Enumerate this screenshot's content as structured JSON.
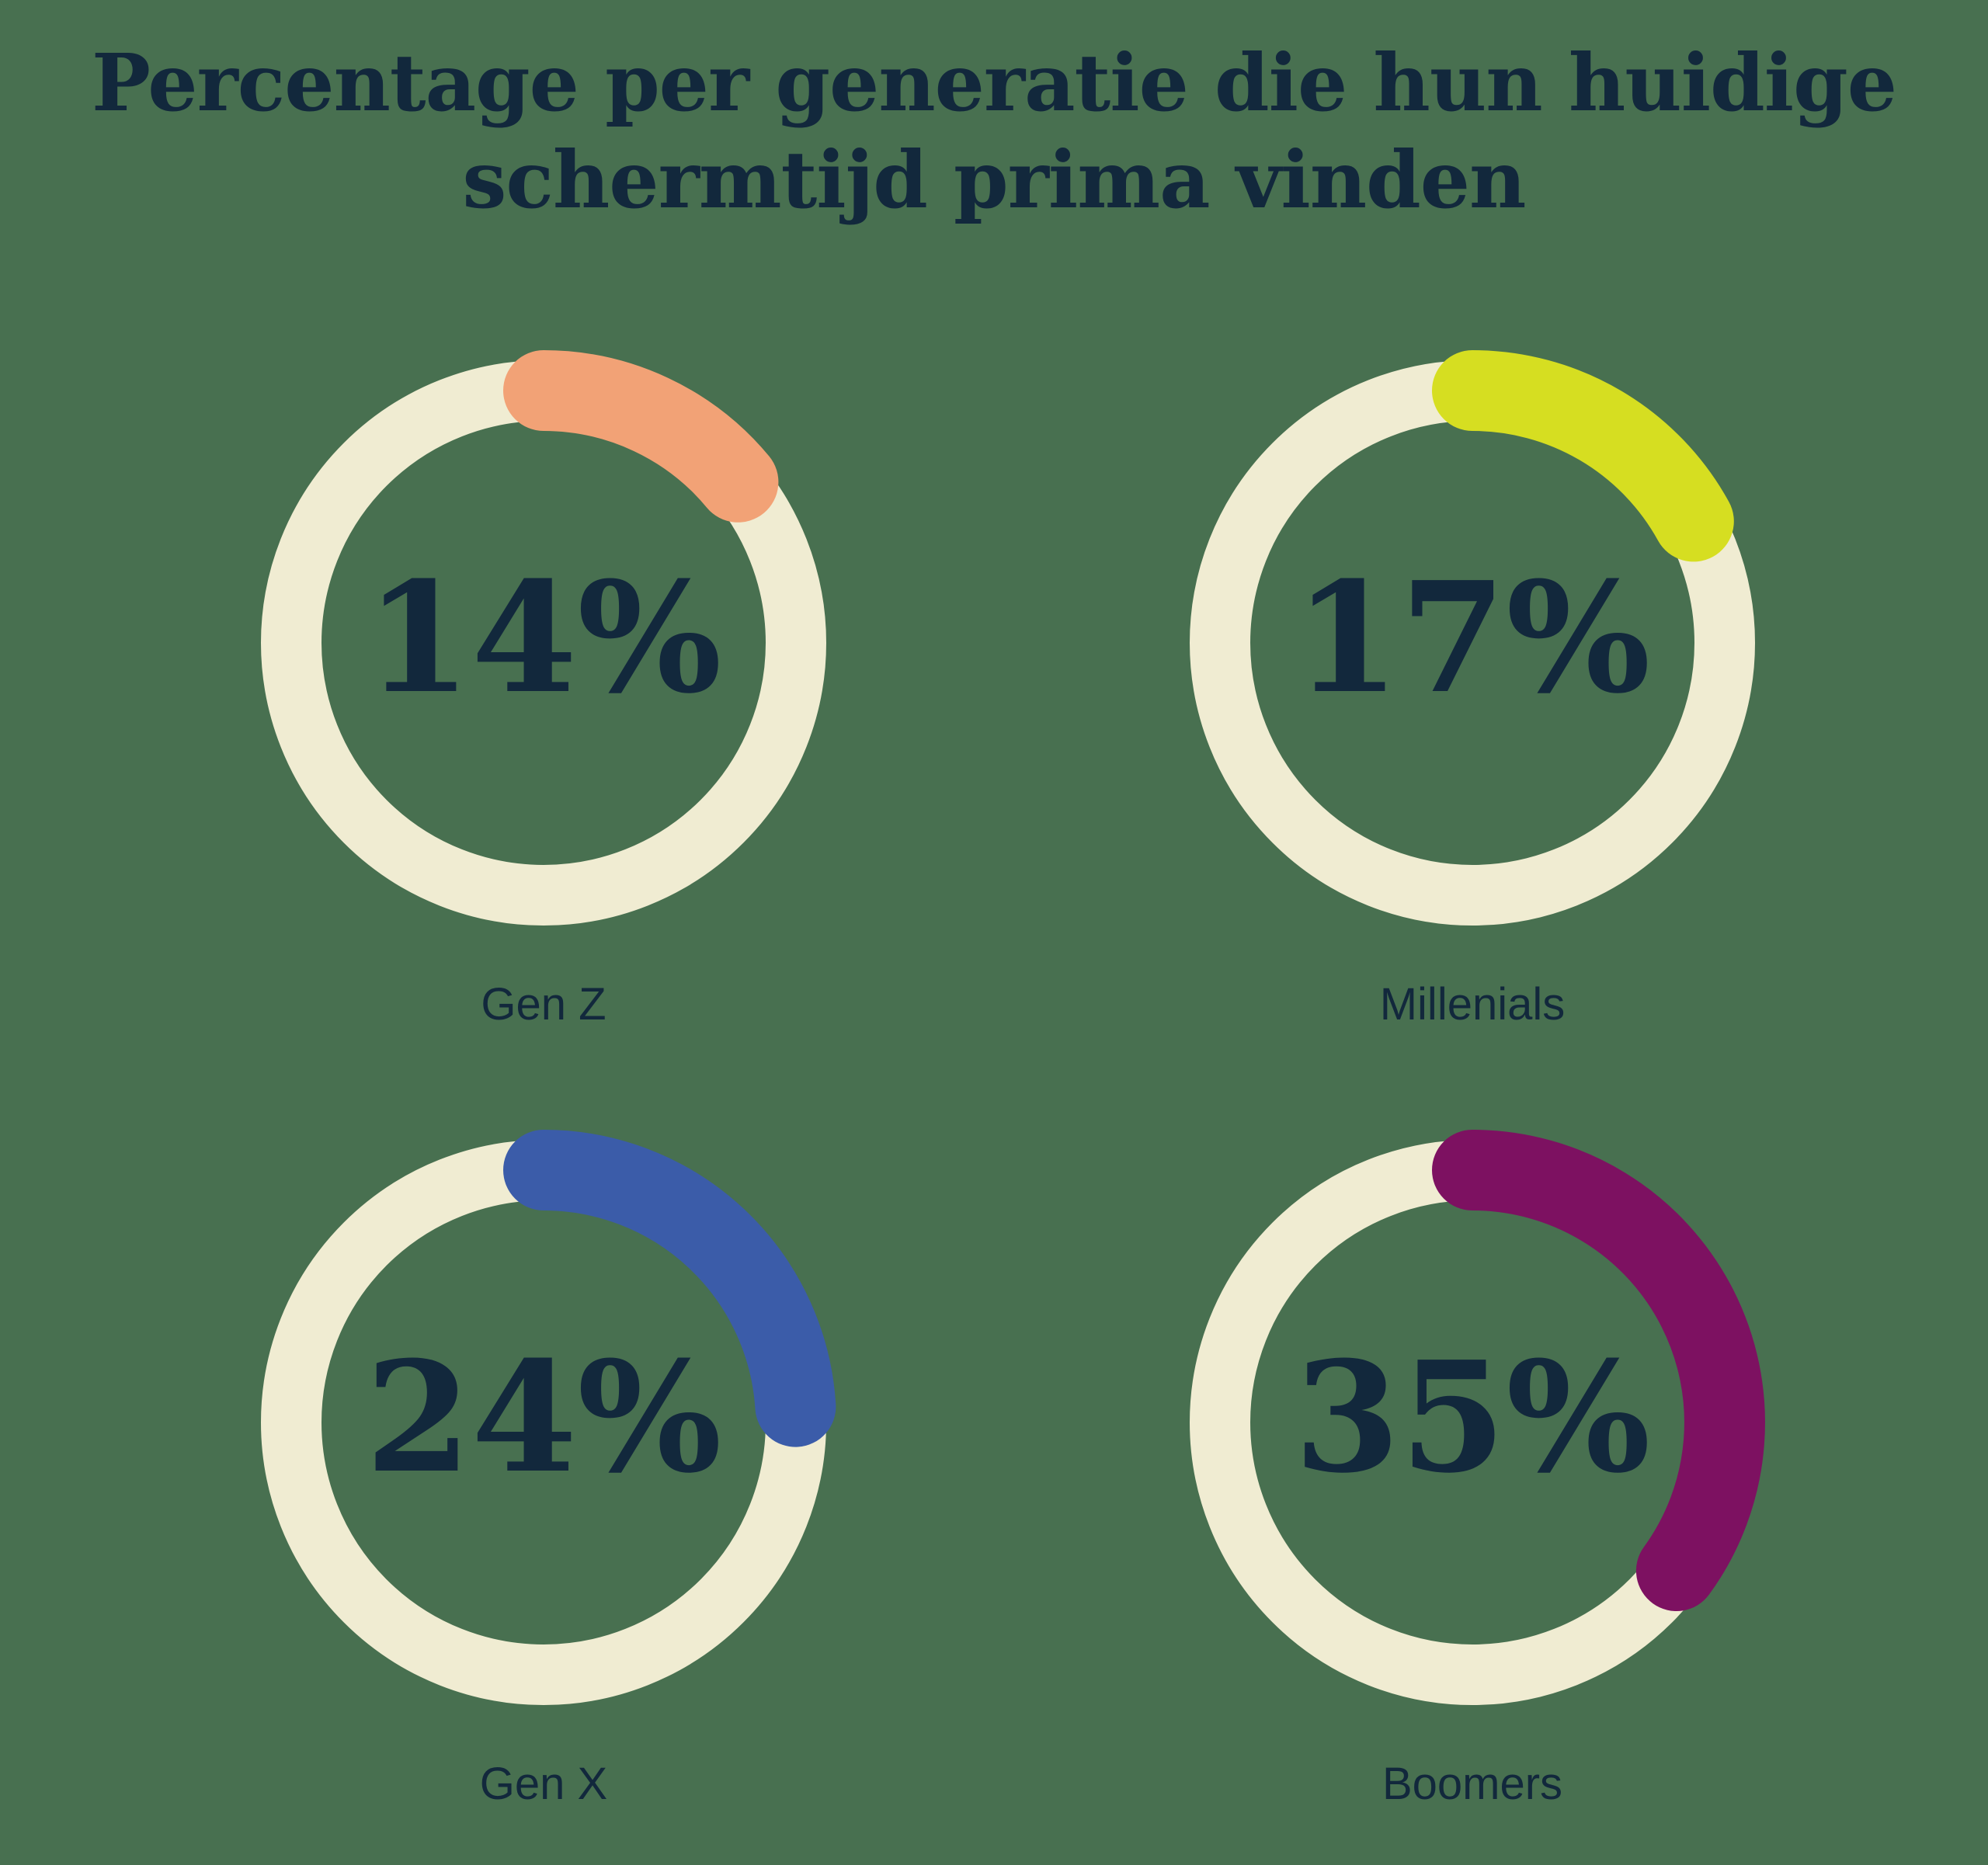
{
  "title": {
    "line1": "Percentage per generatie die hun huidige",
    "line2": "schermtijd prima vinden"
  },
  "colors": {
    "background": "#487050",
    "ring_track": "#F0ECD2",
    "text": "#12283C"
  },
  "chart_data": {
    "type": "donut",
    "layout": "2x2-small-multiples",
    "unit": "%",
    "value_range": [
      0,
      100
    ],
    "arc_start": "top",
    "arc_direction": "clockwise",
    "legend": "none",
    "title": "Percentage per generatie die hun huidige schermtijd prima vinden",
    "rings": [
      {
        "label": "Gen Z",
        "value": 14,
        "value_label": "14%",
        "arc_color": "#F2A276"
      },
      {
        "label": "Millenials",
        "value": 17,
        "value_label": "17%",
        "arc_color": "#D6DE21"
      },
      {
        "label": "Gen X",
        "value": 24,
        "value_label": "24%",
        "arc_color": "#3B5CA9"
      },
      {
        "label": "Boomers",
        "value": 35,
        "value_label": "35%",
        "arc_color": "#7D1161"
      }
    ]
  }
}
